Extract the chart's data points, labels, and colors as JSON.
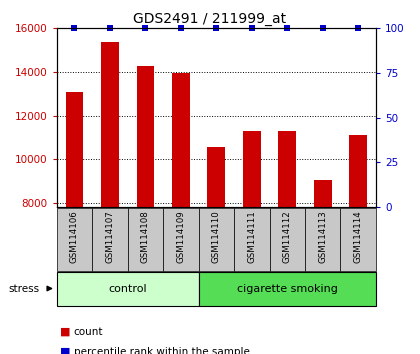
{
  "title": "GDS2491 / 211999_at",
  "samples": [
    "GSM114106",
    "GSM114107",
    "GSM114108",
    "GSM114109",
    "GSM114110",
    "GSM114111",
    "GSM114112",
    "GSM114113",
    "GSM114114"
  ],
  "counts": [
    13100,
    15350,
    14250,
    13950,
    10550,
    11300,
    11300,
    9050,
    11100
  ],
  "ylim_left": [
    7800,
    16000
  ],
  "ylim_right": [
    0,
    100
  ],
  "yticks_left": [
    8000,
    10000,
    12000,
    14000,
    16000
  ],
  "yticks_right": [
    0,
    25,
    50,
    75,
    100
  ],
  "bar_color": "#cc0000",
  "percentile_color": "#0000cc",
  "control_color": "#ccffcc",
  "smoking_color": "#55dd55",
  "tick_label_color_left": "#cc0000",
  "tick_label_color_right": "#0000cc",
  "group_labels": [
    "control",
    "cigarette smoking"
  ],
  "stress_label": "stress",
  "legend_items": [
    {
      "color": "#cc0000",
      "label": "count"
    },
    {
      "color": "#0000cc",
      "label": "percentile rank within the sample"
    }
  ],
  "bar_width": 0.5,
  "gray_box_color": "#c8c8c8",
  "title_fontsize": 10
}
